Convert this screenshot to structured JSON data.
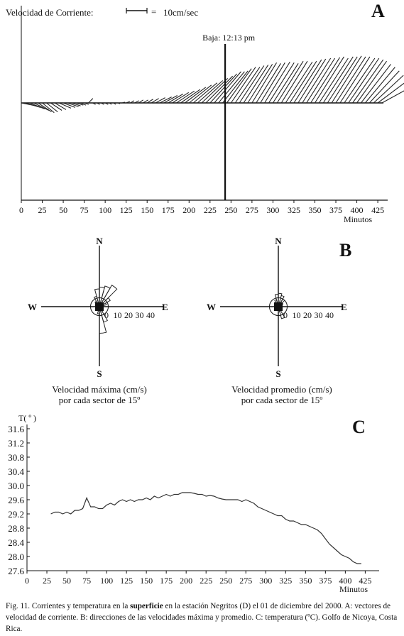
{
  "caption": {
    "part1": "Fig. 11. Corrientes y temperatura en la ",
    "bold": "superficie",
    "part2": " en la estación Negritos (D) el 01 de diciembre del 2000. A: vectores de velocidad de corriente. B: direcciones de las velocidades máxima y promedio. C: temperatura (ºC). Golfo de Nicoya, Costa Rica."
  },
  "chart_data": [
    {
      "panel": "A",
      "type": "line",
      "panel_label": "A",
      "scale_label": "Velocidad de Corriente:",
      "scale_value": "10cm/sec",
      "xlabel": "Minutos",
      "xlim": [
        0,
        430
      ],
      "xticks": [
        "0",
        "25",
        "50",
        "75",
        "100",
        "125",
        "150",
        "175",
        "200",
        "225",
        "250",
        "275",
        "300",
        "325",
        "350",
        "375",
        "400",
        "425"
      ],
      "annotation": {
        "text": "Baja: 12:13 pm",
        "x": 243
      },
      "vectors": [
        {
          "t": 0,
          "u": 2,
          "v": -0.4
        },
        {
          "t": 5,
          "u": 2,
          "v": -0.6
        },
        {
          "t": 10,
          "u": 2,
          "v": -0.8
        },
        {
          "t": 15,
          "u": 2,
          "v": -1.0
        },
        {
          "t": 20,
          "u": 1.8,
          "v": -1.2
        },
        {
          "t": 25,
          "u": 1.6,
          "v": -1.3
        },
        {
          "t": 30,
          "u": 1.5,
          "v": -1.2
        },
        {
          "t": 35,
          "u": 1.5,
          "v": -1.0
        },
        {
          "t": 40,
          "u": 1.5,
          "v": -0.9
        },
        {
          "t": 45,
          "u": 1.6,
          "v": -0.7
        },
        {
          "t": 50,
          "u": 1.6,
          "v": -0.6
        },
        {
          "t": 55,
          "u": 1.5,
          "v": -0.5
        },
        {
          "t": 60,
          "u": 1.2,
          "v": -0.4
        },
        {
          "t": 65,
          "u": 1.0,
          "v": -0.3
        },
        {
          "t": 70,
          "u": 0.8,
          "v": -0.3
        },
        {
          "t": 75,
          "u": 0.6,
          "v": -0.2
        },
        {
          "t": 80,
          "u": 0.6,
          "v": 0.6
        },
        {
          "t": 85,
          "u": 0.4,
          "v": -0.2
        },
        {
          "t": 90,
          "u": 0.4,
          "v": -0.2
        },
        {
          "t": 95,
          "u": 0.4,
          "v": -0.2
        },
        {
          "t": 100,
          "u": 0.4,
          "v": -0.2
        },
        {
          "t": 105,
          "u": 0.3,
          "v": -0.2
        },
        {
          "t": 110,
          "u": 0.3,
          "v": -0.2
        },
        {
          "t": 115,
          "u": 0.3,
          "v": -0.1
        },
        {
          "t": 120,
          "u": 0.4,
          "v": 0.1
        },
        {
          "t": 125,
          "u": 0.5,
          "v": 0.2
        },
        {
          "t": 130,
          "u": 0.5,
          "v": 0.3
        },
        {
          "t": 135,
          "u": 0.6,
          "v": 0.3
        },
        {
          "t": 140,
          "u": 0.6,
          "v": 0.4
        },
        {
          "t": 145,
          "u": 0.7,
          "v": 0.4
        },
        {
          "t": 150,
          "u": 0.8,
          "v": 0.5
        },
        {
          "t": 155,
          "u": 1.0,
          "v": 0.6
        },
        {
          "t": 160,
          "u": 1.3,
          "v": 0.7
        },
        {
          "t": 165,
          "u": 1.6,
          "v": 0.8
        },
        {
          "t": 170,
          "u": 1.8,
          "v": 1.0
        },
        {
          "t": 175,
          "u": 2.0,
          "v": 1.2
        },
        {
          "t": 180,
          "u": 2.2,
          "v": 1.4
        },
        {
          "t": 185,
          "u": 2.4,
          "v": 1.6
        },
        {
          "t": 190,
          "u": 2.6,
          "v": 1.8
        },
        {
          "t": 195,
          "u": 2.8,
          "v": 2.1
        },
        {
          "t": 200,
          "u": 3.0,
          "v": 2.4
        },
        {
          "t": 205,
          "u": 3.2,
          "v": 2.7
        },
        {
          "t": 210,
          "u": 3.4,
          "v": 3.0
        },
        {
          "t": 215,
          "u": 3.5,
          "v": 3.3
        },
        {
          "t": 220,
          "u": 3.6,
          "v": 3.6
        },
        {
          "t": 225,
          "u": 3.6,
          "v": 3.9
        },
        {
          "t": 230,
          "u": 3.6,
          "v": 4.2
        },
        {
          "t": 235,
          "u": 3.5,
          "v": 4.2
        },
        {
          "t": 240,
          "u": 3.4,
          "v": 4.3
        },
        {
          "t": 245,
          "u": 3.3,
          "v": 4.6
        },
        {
          "t": 250,
          "u": 3.3,
          "v": 4.8
        },
        {
          "t": 255,
          "u": 3.3,
          "v": 4.8
        },
        {
          "t": 260,
          "u": 3.3,
          "v": 5.0
        },
        {
          "t": 265,
          "u": 3.3,
          "v": 5.1
        },
        {
          "t": 270,
          "u": 3.3,
          "v": 5.2
        },
        {
          "t": 275,
          "u": 3.3,
          "v": 5.4
        },
        {
          "t": 280,
          "u": 3.3,
          "v": 5.3
        },
        {
          "t": 285,
          "u": 3.3,
          "v": 5.4
        },
        {
          "t": 290,
          "u": 3.4,
          "v": 5.5
        },
        {
          "t": 295,
          "u": 3.4,
          "v": 5.4
        },
        {
          "t": 300,
          "u": 3.4,
          "v": 5.3
        },
        {
          "t": 305,
          "u": 3.5,
          "v": 5.6
        },
        {
          "t": 310,
          "u": 3.5,
          "v": 5.6
        },
        {
          "t": 315,
          "u": 3.6,
          "v": 5.5
        },
        {
          "t": 320,
          "u": 3.6,
          "v": 5.6
        },
        {
          "t": 325,
          "u": 3.7,
          "v": 5.8
        },
        {
          "t": 330,
          "u": 3.7,
          "v": 5.9
        },
        {
          "t": 335,
          "u": 3.8,
          "v": 6.0
        },
        {
          "t": 340,
          "u": 3.8,
          "v": 6.0
        },
        {
          "t": 345,
          "u": 3.9,
          "v": 6.1
        },
        {
          "t": 350,
          "u": 3.9,
          "v": 6.2
        },
        {
          "t": 355,
          "u": 3.9,
          "v": 6.0
        },
        {
          "t": 360,
          "u": 4.0,
          "v": 6.2
        },
        {
          "t": 365,
          "u": 4.0,
          "v": 6.2
        },
        {
          "t": 370,
          "u": 4.0,
          "v": 6.3
        },
        {
          "t": 375,
          "u": 4.0,
          "v": 6.2
        },
        {
          "t": 380,
          "u": 4.0,
          "v": 6.2
        },
        {
          "t": 385,
          "u": 4.1,
          "v": 6.0
        },
        {
          "t": 390,
          "u": 4.1,
          "v": 6.0
        },
        {
          "t": 395,
          "u": 4.1,
          "v": 5.8
        },
        {
          "t": 400,
          "u": 4.0,
          "v": 5.6
        },
        {
          "t": 405,
          "u": 4.0,
          "v": 5.2
        },
        {
          "t": 410,
          "u": 4.0,
          "v": 4.8
        },
        {
          "t": 415,
          "u": 4.0,
          "v": 4.3
        },
        {
          "t": 420,
          "u": 4.0,
          "v": 3.7
        },
        {
          "t": 425,
          "u": 4.0,
          "v": 3.0
        },
        {
          "t": 430,
          "u": 4.0,
          "v": 2.2
        }
      ]
    },
    {
      "panel": "B",
      "type": "rose",
      "panel_label": "B",
      "roses": [
        {
          "subtitle_line1": "Velocidad máxima (cm/s)",
          "subtitle_line2": "por cada sector de 15º",
          "compass": {
            "N": "N",
            "S": "S",
            "E": "E",
            "W": "W"
          },
          "ring_labels": [
            "0",
            "10",
            "20",
            "30",
            "40"
          ],
          "rmax": 40,
          "sectors": [
            {
              "dir": 337.5,
              "r": 12
            },
            {
              "dir": 352.5,
              "r": 20
            },
            {
              "dir": 7.5,
              "r": 22
            },
            {
              "dir": 22.5,
              "r": 24
            },
            {
              "dir": 37.5,
              "r": 28
            },
            {
              "dir": 52.5,
              "r": 14
            },
            {
              "dir": 67.5,
              "r": 8
            },
            {
              "dir": 322.5,
              "r": 7
            },
            {
              "dir": 157.5,
              "r": 18
            },
            {
              "dir": 172.5,
              "r": 30
            },
            {
              "dir": 187.5,
              "r": 8
            },
            {
              "dir": 142.5,
              "r": 6
            },
            {
              "dir": 262.5,
              "r": 4
            },
            {
              "dir": 97.5,
              "r": 4
            }
          ]
        },
        {
          "subtitle_line1": "Velocidad promedio (cm/s)",
          "subtitle_line2": "por cada sector de 15º",
          "compass": {
            "N": "N",
            "S": "S",
            "E": "E",
            "W": "W"
          },
          "ring_labels": [
            "0",
            "10",
            "20",
            "30",
            "40"
          ],
          "rmax": 40,
          "sectors": [
            {
              "dir": 337.5,
              "r": 8
            },
            {
              "dir": 352.5,
              "r": 14
            },
            {
              "dir": 7.5,
              "r": 15
            },
            {
              "dir": 22.5,
              "r": 13
            },
            {
              "dir": 37.5,
              "r": 10
            },
            {
              "dir": 52.5,
              "r": 6
            },
            {
              "dir": 322.5,
              "r": 5
            },
            {
              "dir": 157.5,
              "r": 14
            },
            {
              "dir": 172.5,
              "r": 6
            },
            {
              "dir": 262.5,
              "r": 3
            },
            {
              "dir": 97.5,
              "r": 3
            }
          ]
        }
      ]
    },
    {
      "panel": "C",
      "type": "line",
      "panel_label": "C",
      "ylabel": "T( º )",
      "xlabel": "Minutos",
      "xlim": [
        0,
        430
      ],
      "ylim": [
        27.6,
        31.6
      ],
      "xticks": [
        "0",
        "25",
        "50",
        "75",
        "100",
        "125",
        "150",
        "175",
        "200",
        "225",
        "250",
        "275",
        "300",
        "325",
        "350",
        "375",
        "400",
        "425"
      ],
      "yticks": [
        "27.6",
        "28.0",
        "28.4",
        "28.8",
        "29.2",
        "29.6",
        "30.0",
        "30.4",
        "30.8",
        "31.2",
        "31.6"
      ],
      "x": [
        30,
        35,
        40,
        45,
        50,
        55,
        60,
        65,
        70,
        75,
        80,
        85,
        90,
        95,
        100,
        105,
        110,
        115,
        120,
        125,
        130,
        135,
        140,
        145,
        150,
        155,
        160,
        165,
        170,
        175,
        180,
        185,
        190,
        195,
        200,
        205,
        210,
        215,
        220,
        225,
        230,
        235,
        240,
        245,
        250,
        255,
        260,
        265,
        270,
        275,
        280,
        285,
        290,
        295,
        300,
        305,
        310,
        315,
        320,
        325,
        330,
        335,
        340,
        345,
        350,
        355,
        360,
        365,
        370,
        375,
        380,
        385,
        390,
        395,
        400,
        405,
        410,
        415,
        420
      ],
      "y": [
        29.2,
        29.25,
        29.25,
        29.2,
        29.25,
        29.2,
        29.3,
        29.3,
        29.35,
        29.65,
        29.4,
        29.4,
        29.35,
        29.35,
        29.45,
        29.5,
        29.45,
        29.55,
        29.6,
        29.55,
        29.6,
        29.55,
        29.6,
        29.6,
        29.65,
        29.6,
        29.7,
        29.65,
        29.7,
        29.75,
        29.7,
        29.75,
        29.75,
        29.8,
        29.8,
        29.8,
        29.78,
        29.75,
        29.75,
        29.7,
        29.72,
        29.7,
        29.65,
        29.62,
        29.6,
        29.6,
        29.6,
        29.6,
        29.55,
        29.6,
        29.55,
        29.5,
        29.4,
        29.35,
        29.3,
        29.25,
        29.2,
        29.15,
        29.15,
        29.05,
        29.0,
        29.0,
        28.95,
        28.9,
        28.9,
        28.85,
        28.8,
        28.75,
        28.65,
        28.5,
        28.35,
        28.25,
        28.15,
        28.05,
        28.0,
        27.95,
        27.85,
        27.8,
        27.8
      ]
    }
  ]
}
